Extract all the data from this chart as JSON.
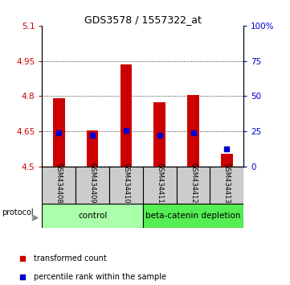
{
  "title": "GDS3578 / 1557322_at",
  "samples": [
    "GSM434408",
    "GSM434409",
    "GSM434410",
    "GSM434411",
    "GSM434412",
    "GSM434413"
  ],
  "red_values": [
    4.79,
    4.655,
    4.935,
    4.775,
    4.805,
    4.555
  ],
  "blue_values_left": [
    4.645,
    4.635,
    4.655,
    4.635,
    4.645,
    4.575
  ],
  "ylim_left": [
    4.5,
    5.1
  ],
  "ylim_right": [
    0,
    100
  ],
  "yticks_left": [
    4.5,
    4.65,
    4.8,
    4.95,
    5.1
  ],
  "yticks_right": [
    0,
    25,
    50,
    75,
    100
  ],
  "ytick_labels_left": [
    "4.5",
    "4.65",
    "4.8",
    "4.95",
    "5.1"
  ],
  "ytick_labels_right": [
    "0",
    "25",
    "50",
    "75",
    "100%"
  ],
  "hline_values": [
    4.65,
    4.8,
    4.95
  ],
  "bar_bottom": 4.5,
  "red_color": "#cc0000",
  "blue_color": "#0000cc",
  "control_label": "control",
  "depletion_label": "beta-catenin depletion",
  "protocol_label": "protocol",
  "legend1": "transformed count",
  "legend2": "percentile rank within the sample",
  "control_color": "#aaffaa",
  "depletion_color": "#55ee55",
  "group_box_color": "#cccccc",
  "blue_marker_size": 4,
  "red_bar_width": 0.35,
  "title_fontsize": 9,
  "tick_fontsize": 7.5,
  "sample_fontsize": 6,
  "group_fontsize": 7.5,
  "legend_fontsize": 7
}
